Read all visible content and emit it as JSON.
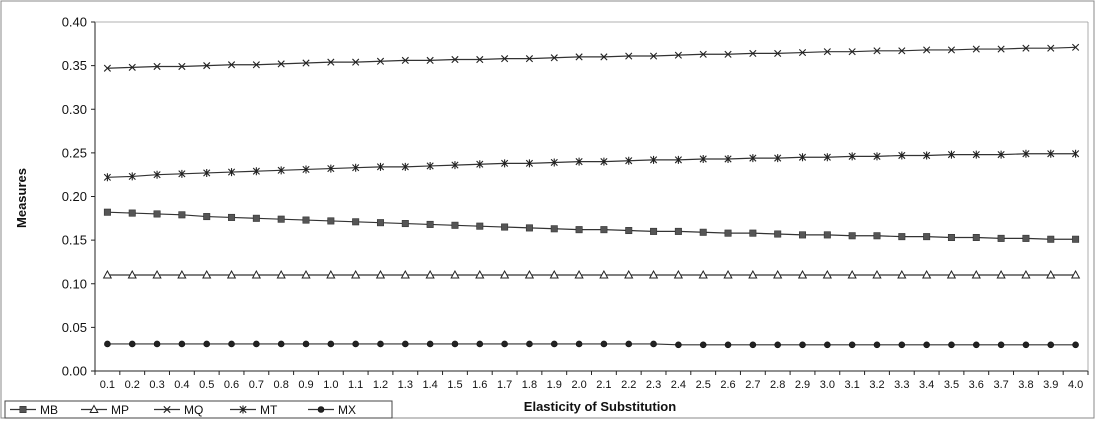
{
  "chart_data": {
    "type": "line",
    "title": "",
    "xlabel": "Elasticity of Substitution",
    "ylabel": "Measures",
    "ylim": [
      0,
      0.4
    ],
    "yticks": [
      "0.00",
      "0.05",
      "0.10",
      "0.15",
      "0.20",
      "0.25",
      "0.30",
      "0.35",
      "0.40"
    ],
    "grid": false,
    "legend_position": "bottom-left",
    "categories": [
      "0.1",
      "0.2",
      "0.3",
      "0.4",
      "0.5",
      "0.6",
      "0.7",
      "0.8",
      "0.9",
      "1.0",
      "1.1",
      "1.2",
      "1.3",
      "1.4",
      "1.5",
      "1.6",
      "1.7",
      "1.8",
      "1.9",
      "2.0",
      "2.1",
      "2.2",
      "2.3",
      "2.4",
      "2.5",
      "2.6",
      "2.7",
      "2.8",
      "2.9",
      "3.0",
      "3.1",
      "3.2",
      "3.3",
      "3.4",
      "3.5",
      "3.6",
      "3.7",
      "3.8",
      "3.9",
      "4.0"
    ],
    "series": [
      {
        "name": "MB",
        "marker": "square",
        "values": [
          0.182,
          0.181,
          0.18,
          0.179,
          0.177,
          0.176,
          0.175,
          0.174,
          0.173,
          0.172,
          0.171,
          0.17,
          0.169,
          0.168,
          0.167,
          0.166,
          0.165,
          0.164,
          0.163,
          0.162,
          0.162,
          0.161,
          0.16,
          0.16,
          0.159,
          0.158,
          0.158,
          0.157,
          0.156,
          0.156,
          0.155,
          0.155,
          0.154,
          0.154,
          0.153,
          0.153,
          0.152,
          0.152,
          0.151,
          0.151
        ]
      },
      {
        "name": "MP",
        "marker": "triangle",
        "values": [
          0.11,
          0.11,
          0.11,
          0.11,
          0.11,
          0.11,
          0.11,
          0.11,
          0.11,
          0.11,
          0.11,
          0.11,
          0.11,
          0.11,
          0.11,
          0.11,
          0.11,
          0.11,
          0.11,
          0.11,
          0.11,
          0.11,
          0.11,
          0.11,
          0.11,
          0.11,
          0.11,
          0.11,
          0.11,
          0.11,
          0.11,
          0.11,
          0.11,
          0.11,
          0.11,
          0.11,
          0.11,
          0.11,
          0.11,
          0.11
        ]
      },
      {
        "name": "MQ",
        "marker": "x",
        "values": [
          0.347,
          0.348,
          0.349,
          0.349,
          0.35,
          0.351,
          0.351,
          0.352,
          0.353,
          0.354,
          0.354,
          0.355,
          0.356,
          0.356,
          0.357,
          0.357,
          0.358,
          0.358,
          0.359,
          0.36,
          0.36,
          0.361,
          0.361,
          0.362,
          0.363,
          0.363,
          0.364,
          0.364,
          0.365,
          0.366,
          0.366,
          0.367,
          0.367,
          0.368,
          0.368,
          0.369,
          0.369,
          0.37,
          0.37,
          0.371
        ]
      },
      {
        "name": "MT",
        "marker": "star",
        "values": [
          0.222,
          0.223,
          0.225,
          0.226,
          0.227,
          0.228,
          0.229,
          0.23,
          0.231,
          0.232,
          0.233,
          0.234,
          0.234,
          0.235,
          0.236,
          0.237,
          0.238,
          0.238,
          0.239,
          0.24,
          0.24,
          0.241,
          0.242,
          0.242,
          0.243,
          0.243,
          0.244,
          0.244,
          0.245,
          0.245,
          0.246,
          0.246,
          0.247,
          0.247,
          0.248,
          0.248,
          0.248,
          0.249,
          0.249,
          0.249
        ]
      },
      {
        "name": "MX",
        "marker": "circle",
        "values": [
          0.031,
          0.031,
          0.031,
          0.031,
          0.031,
          0.031,
          0.031,
          0.031,
          0.031,
          0.031,
          0.031,
          0.031,
          0.031,
          0.031,
          0.031,
          0.031,
          0.031,
          0.031,
          0.031,
          0.031,
          0.031,
          0.031,
          0.031,
          0.03,
          0.03,
          0.03,
          0.03,
          0.03,
          0.03,
          0.03,
          0.03,
          0.03,
          0.03,
          0.03,
          0.03,
          0.03,
          0.03,
          0.03,
          0.03,
          0.03
        ]
      }
    ]
  }
}
